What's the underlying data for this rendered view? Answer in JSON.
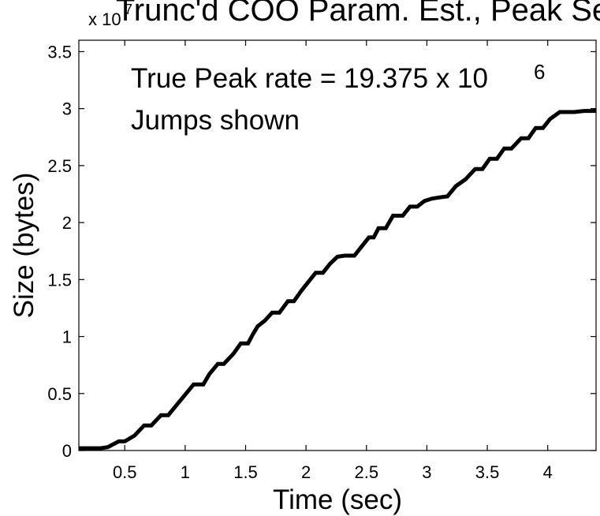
{
  "chart_data": {
    "type": "line",
    "title": "Trunc'd COO Param. Est., Peak Ses",
    "xlabel": "Time (sec)",
    "ylabel": "Size (bytes)",
    "y_multiplier": "x 10",
    "y_multiplier_exponent": "7",
    "xlim": [
      0.12,
      4.4
    ],
    "ylim": [
      0,
      36000000
    ],
    "x_ticks": [
      0.5,
      1,
      1.5,
      2,
      2.5,
      3,
      3.5,
      4
    ],
    "x_tick_labels": [
      "0.5",
      "1",
      "1.5",
      "2",
      "2.5",
      "3",
      "3.5",
      "4"
    ],
    "y_ticks": [
      0,
      5000000,
      10000000,
      15000000,
      20000000,
      25000000,
      30000000,
      35000000
    ],
    "y_tick_labels": [
      "0",
      "0.5",
      "1",
      "1.5",
      "2",
      "2.5",
      "3",
      "3.5"
    ],
    "annotations": [
      "True Peak rate = 19.375 x 10",
      "6",
      "Jumps shown"
    ],
    "grid": false,
    "line_color": "#000000",
    "series": [
      {
        "x": [
          0.12,
          0.3,
          0.36,
          0.45,
          0.5,
          0.58,
          0.66,
          0.72,
          0.8,
          0.86,
          0.93,
          1.0,
          1.07,
          1.15,
          1.2,
          1.27,
          1.32,
          1.4,
          1.46,
          1.52,
          1.56,
          1.6,
          1.66,
          1.72,
          1.78,
          1.85,
          1.9,
          1.96,
          2.02,
          2.08,
          2.14,
          2.2,
          2.26,
          2.32,
          2.4,
          2.46,
          2.52,
          2.56,
          2.6,
          2.66,
          2.72,
          2.8,
          2.86,
          2.92,
          2.98,
          3.04,
          3.1,
          3.17,
          3.24,
          3.32,
          3.4,
          3.46,
          3.52,
          3.58,
          3.64,
          3.7,
          3.78,
          3.84,
          3.9,
          3.96,
          4.02,
          4.1,
          4.16,
          4.22,
          4.3,
          4.4
        ],
        "y": [
          200000,
          200000,
          300000,
          800000,
          800000,
          1300000,
          2200000,
          2200000,
          3100000,
          3100000,
          4000000,
          4900000,
          5800000,
          5800000,
          6700000,
          7600000,
          7600000,
          8500000,
          9400000,
          9400000,
          10200000,
          10900000,
          11400000,
          12100000,
          12100000,
          13100000,
          13100000,
          14000000,
          14800000,
          15600000,
          15600000,
          16400000,
          17000000,
          17100000,
          17100000,
          17900000,
          18700000,
          18700000,
          19500000,
          19500000,
          20600000,
          20600000,
          21400000,
          21400000,
          21900000,
          22100000,
          22200000,
          22300000,
          23200000,
          23800000,
          24700000,
          24700000,
          25600000,
          25600000,
          26500000,
          26500000,
          27400000,
          27400000,
          28300000,
          28300000,
          29100000,
          29700000,
          29700000,
          29700000,
          29800000,
          29800000
        ]
      }
    ]
  }
}
